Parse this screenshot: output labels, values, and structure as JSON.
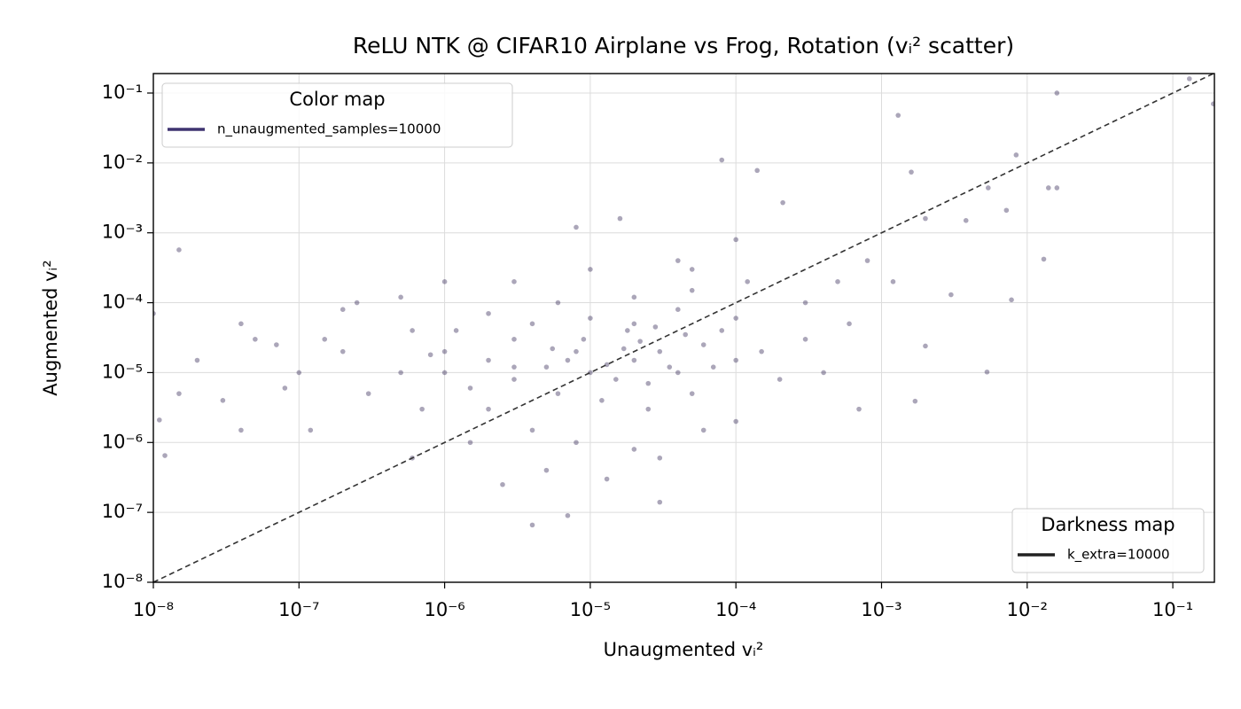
{
  "chart_data": {
    "type": "scatter",
    "title": "ReLU NTK @ CIFAR10 Airplane vs Frog, Rotation (vᵢ² scatter)",
    "x_label": "Unaugmented vᵢ²",
    "y_label": "Augmented vᵢ²",
    "x_scale": "log",
    "y_scale": "log",
    "grid": true,
    "xlim": [
      1e-08,
      0.193
    ],
    "ylim": [
      1e-08,
      0.19
    ],
    "xticks": [
      {
        "value": 1e-08,
        "label": "10⁻⁸"
      },
      {
        "value": 1e-07,
        "label": "10⁻⁷"
      },
      {
        "value": 1e-06,
        "label": "10⁻⁶"
      },
      {
        "value": 1e-05,
        "label": "10⁻⁵"
      },
      {
        "value": 0.0001,
        "label": "10⁻⁴"
      },
      {
        "value": 0.001,
        "label": "10⁻³"
      },
      {
        "value": 0.01,
        "label": "10⁻²"
      },
      {
        "value": 0.1,
        "label": "10⁻¹"
      }
    ],
    "yticks": [
      {
        "value": 1e-08,
        "label": "10⁻⁸"
      },
      {
        "value": 1e-07,
        "label": "10⁻⁷"
      },
      {
        "value": 1e-06,
        "label": "10⁻⁶"
      },
      {
        "value": 1e-05,
        "label": "10⁻⁵"
      },
      {
        "value": 0.0001,
        "label": "10⁻⁴"
      },
      {
        "value": 0.001,
        "label": "10⁻³"
      },
      {
        "value": 0.01,
        "label": "10⁻²"
      },
      {
        "value": 0.1,
        "label": "10⁻¹"
      }
    ],
    "legends": [
      {
        "title": "Color map",
        "position": "upper left",
        "entries": [
          {
            "name": "n_unaugmented_samples=10000",
            "color": "#3f3470"
          }
        ]
      },
      {
        "title": "Darkness map",
        "position": "lower right",
        "entries": [
          {
            "name": "k_extra=10000",
            "color": "#222222"
          }
        ]
      }
    ],
    "series": [
      {
        "name": "n_unaugmented_samples=10000",
        "color": "#2d2150",
        "x": [
          1e-05,
          2e-05,
          3e-05,
          5e-06,
          8e-06,
          1.5e-05,
          4e-05,
          6e-05,
          0.0001,
          2e-06,
          3e-06,
          1e-06,
          5e-07,
          2e-07,
          1e-07,
          5e-08,
          2e-08,
          3e-06,
          6e-06,
          1.2e-05,
          2.5e-05,
          5e-05,
          8e-05,
          0.00015,
          0.0002,
          0.0003,
          2e-05,
          1e-05,
          4e-06,
          1.5e-06,
          7e-07,
          3e-07,
          1.5e-07,
          8e-08,
          3e-08,
          4e-05,
          0.0001,
          6e-06,
          2e-05,
          5e-05,
          0.00012,
          0.0003,
          0.0005,
          0.0008,
          0.0012,
          0.0006,
          0.0004,
          0.0007,
          0.002,
          0.003,
          1e-06,
          5e-07,
          2e-07,
          3e-06,
          1e-05,
          4e-05,
          0.0001,
          1.6e-05,
          8e-06,
          5e-05,
          2e-06,
          4e-06,
          8e-06,
          2e-05,
          1.3e-05,
          5e-06,
          1.5e-06,
          6e-07,
          2.5e-06,
          6e-05,
          0.0001,
          3e-05,
          1e-06,
          7e-06,
          1.7e-05,
          3.5e-05,
          2.5e-05,
          9e-06,
          4.5e-05,
          7e-05,
          1.3e-05,
          2.2e-05,
          5.5e-06,
          3e-06,
          1.8e-05,
          2.8e-05,
          1.5e-08,
          4e-08,
          7e-08,
          1.2e-07,
          2.5e-07,
          4e-08,
          6e-07,
          1.2e-06,
          2e-06,
          8e-07,
          0.13,
          0.016,
          0.19,
          0.0013,
          8e-05,
          0.00014,
          0.0084,
          0.0016,
          0.0054,
          0.014,
          0.016,
          0.0072,
          0.013,
          0.0078,
          0.0053,
          0.0017,
          0.0038,
          0.002,
          0.00021,
          1.5e-08,
          4e-06,
          3e-05,
          7e-06,
          1e-08,
          1.2e-08,
          1.1e-08
        ],
        "y": [
          1e-05,
          1.5e-05,
          2e-05,
          1.2e-05,
          2e-05,
          8e-06,
          1e-05,
          2.5e-05,
          1.5e-05,
          1.5e-05,
          8e-06,
          2e-05,
          1e-05,
          2e-05,
          1e-05,
          3e-05,
          1.5e-05,
          3e-05,
          5e-06,
          4e-06,
          3e-06,
          5e-06,
          4e-05,
          2e-05,
          8e-06,
          3e-05,
          5e-05,
          6e-05,
          5e-05,
          6e-06,
          3e-06,
          5e-06,
          3e-05,
          6e-06,
          4e-06,
          8e-05,
          6e-05,
          0.0001,
          0.00012,
          0.00015,
          0.0002,
          0.0001,
          0.0002,
          0.0004,
          0.0002,
          5e-05,
          1e-05,
          3e-06,
          2.4e-05,
          0.00013,
          0.0002,
          0.00012,
          8e-05,
          0.0002,
          0.0003,
          0.0004,
          0.0008,
          0.0016,
          0.0012,
          0.0003,
          3e-06,
          1.5e-06,
          1e-06,
          8e-07,
          3e-07,
          4e-07,
          1e-06,
          6e-07,
          2.5e-07,
          1.5e-06,
          2e-06,
          6e-07,
          1e-05,
          1.5e-05,
          2.2e-05,
          1.2e-05,
          7e-06,
          3e-05,
          3.5e-05,
          1.2e-05,
          1.3e-05,
          2.8e-05,
          2.2e-05,
          1.2e-05,
          4e-05,
          4.5e-05,
          5e-06,
          1.5e-06,
          2.5e-05,
          1.5e-06,
          0.0001,
          5e-05,
          4e-05,
          4e-05,
          7e-05,
          1.8e-05,
          0.16,
          0.1,
          0.07,
          0.048,
          0.011,
          0.0078,
          0.013,
          0.0074,
          0.0044,
          0.0044,
          0.0044,
          0.0021,
          0.00042,
          0.00011,
          1.02e-05,
          3.9e-06,
          0.0015,
          0.0016,
          0.0027,
          0.00057,
          6.6e-08,
          1.4e-07,
          9e-08,
          7e-05,
          6.5e-07,
          2.1e-06
        ]
      }
    ]
  }
}
